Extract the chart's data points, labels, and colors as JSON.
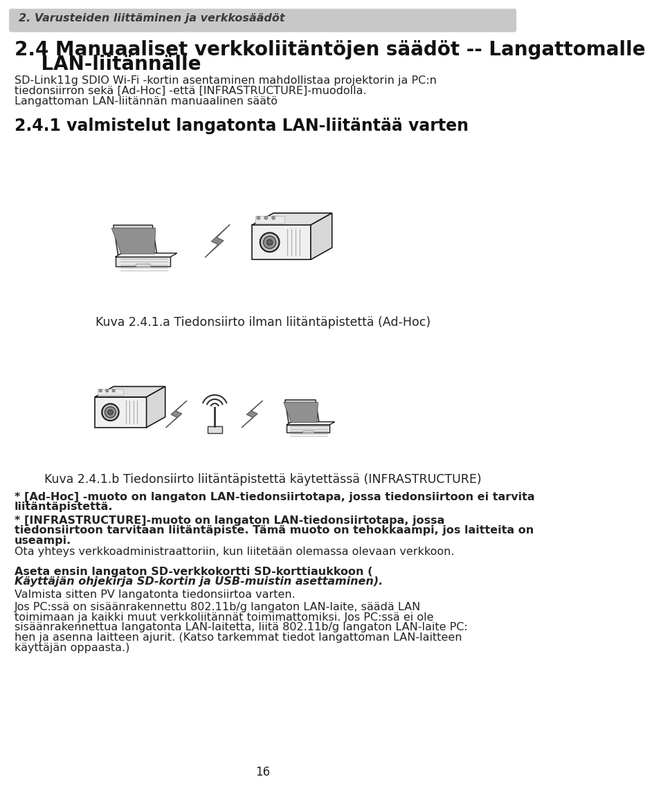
{
  "bg_color": "#ffffff",
  "header_bg": "#c8c8c8",
  "header_text": "2. Varusteiden liittäminen ja verkkosäädöt",
  "header_text_color": "#3a3a3a",
  "header_font_size": 11.5,
  "title_line1": "2.4 Manuaaliset verkkoliitäntöjen säädöt -- Langattomalle",
  "title_line2": "    LAN-liitännälle",
  "title_font_size": 20,
  "title_color": "#111111",
  "body_font_size": 11.5,
  "body_color": "#222222",
  "section_title": "2.4.1 valmistelut langatonta LAN-liitäntää varten",
  "section_title_font_size": 17,
  "caption1": "Kuva 2.4.1.a Tiedonsiirto ilman liitäntäpistettä (Ad-Hoc)",
  "caption2": "Kuva 2.4.1.b Tiedonsiirto liitäntäpistettä käytettässä (INFRASTRUCTURE)",
  "caption_font_size": 12.5,
  "caption_color": "#222222",
  "body_para1_l1": "SD-Link11g SDIO Wi-Fi -kortin asentaminen mahdollistaa projektorin ja PC:n",
  "body_para1_l2": "tiedonsiirron sekä [Ad-Hoc] -että [INFRASTRUCTURE]-muodolla.",
  "body_para1_l3": "Langattoman LAN-liitännän manuaalinen säätö",
  "bullet1_l1": "* [Ad-Hoc] -muoto on langaton LAN-tiedonsiirtotapa, jossa tiedonsiirtoon ei tarvita",
  "bullet1_l2": "liitäntäpistettä.",
  "bullet2_l1": "* [INFRASTRUCTURE]-muoto on langaton LAN-tiedonsiirtotapa, jossa",
  "bullet2_l2": "tiedonsiirtoon tarvitaan liitäntäpiste. Tämä muoto on tehokkaampi, jos laitteita on",
  "bullet2_l3": "useampi.",
  "bullet3": "Ota yhteys verkkoadministraattoriin, kun liitetään olemassa olevaan verkkoon.",
  "bottom_l1": "Aseta ensin langaton SD-verkkokortti SD-korttiaukkoon (",
  "bottom_l1_italic": "Κäyttäjän ohjekirja SD-kortin ja USB-muistin asettaminen).",
  "bottom_l2": "Valmista sitten PV langatonta tiedonsiirtoa varten.",
  "bottom_l3_1": "Jos PC:ssä on sisäänrakennettu 802.11b/g langaton LAN-laite, säädä LAN",
  "bottom_l3_2": "toimimaan ja kaikki muut verkkoliitännät toimimattomiksi. Jos PC:ssä ei ole",
  "bottom_l3_3": "sisäänrakennettua langatonta LAN-laitetta, liitä 802.11b/g langaton LAN-laite PC:",
  "bottom_l3_4": "hen ja asenna laitteen ajurit. (Katso tarkemmat tiedot langattoman LAN-laitteen",
  "bottom_l3_5": "käyttäjän oppaasta.)",
  "page_number": "16"
}
